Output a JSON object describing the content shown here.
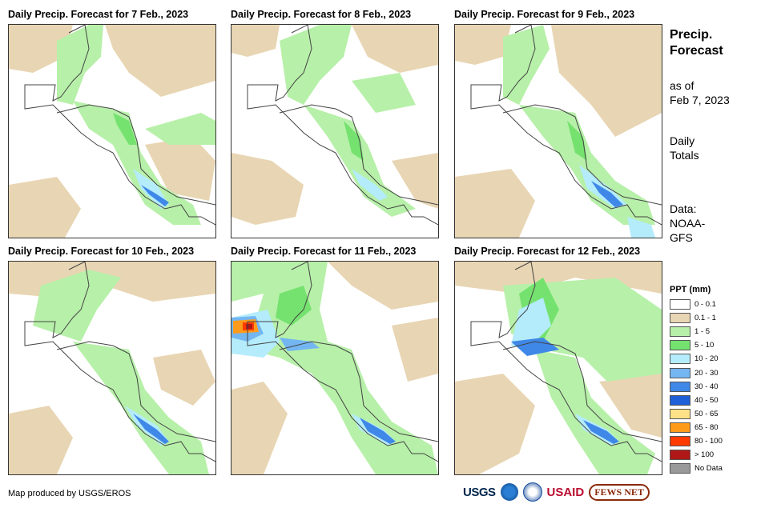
{
  "panels": [
    {
      "title": "Daily Precip. Forecast for 7 Feb., 2023"
    },
    {
      "title": "Daily Precip. Forecast for 8 Feb., 2023"
    },
    {
      "title": "Daily Precip. Forecast for 9 Feb., 2023"
    },
    {
      "title": "Daily Precip. Forecast for 10 Feb., 2023"
    },
    {
      "title": "Daily Precip. Forecast for 11 Feb., 2023"
    },
    {
      "title": "Daily Precip. Forecast for 12 Feb., 2023"
    }
  ],
  "sidebar": {
    "title_line1": "Precip.",
    "title_line2": "Forecast",
    "asof_line1": "as of",
    "asof_line2": "Feb 7, 2023",
    "totals_line1": "Daily",
    "totals_line2": "Totals",
    "data_line1": "Data:",
    "data_line2": "NOAA-",
    "data_line3": "GFS"
  },
  "legend": {
    "title": "PPT (mm)",
    "items": [
      {
        "label": "0 - 0.1",
        "color": "#ffffff"
      },
      {
        "label": "0.1 - 1",
        "color": "#e8d5b3"
      },
      {
        "label": "1 - 5",
        "color": "#b7f0a9"
      },
      {
        "label": "5 - 10",
        "color": "#75e26f"
      },
      {
        "label": "10 - 20",
        "color": "#b4ecfb"
      },
      {
        "label": "20 - 30",
        "color": "#74b6f1"
      },
      {
        "label": "30 - 40",
        "color": "#3f88e8"
      },
      {
        "label": "40 - 50",
        "color": "#1f5fd8"
      },
      {
        "label": "50 - 65",
        "color": "#ffe287"
      },
      {
        "label": "65 - 80",
        "color": "#ff9b1b"
      },
      {
        "label": "80 - 100",
        "color": "#ff3b00"
      },
      {
        "label": "> 100",
        "color": "#b01818"
      },
      {
        "label": "No Data",
        "color": "#9a9a9a"
      }
    ]
  },
  "credit": "Map produced by USGS/EROS",
  "logos": {
    "usgs": "USGS",
    "usaid": "USAID",
    "fews": "FEWS NET"
  }
}
